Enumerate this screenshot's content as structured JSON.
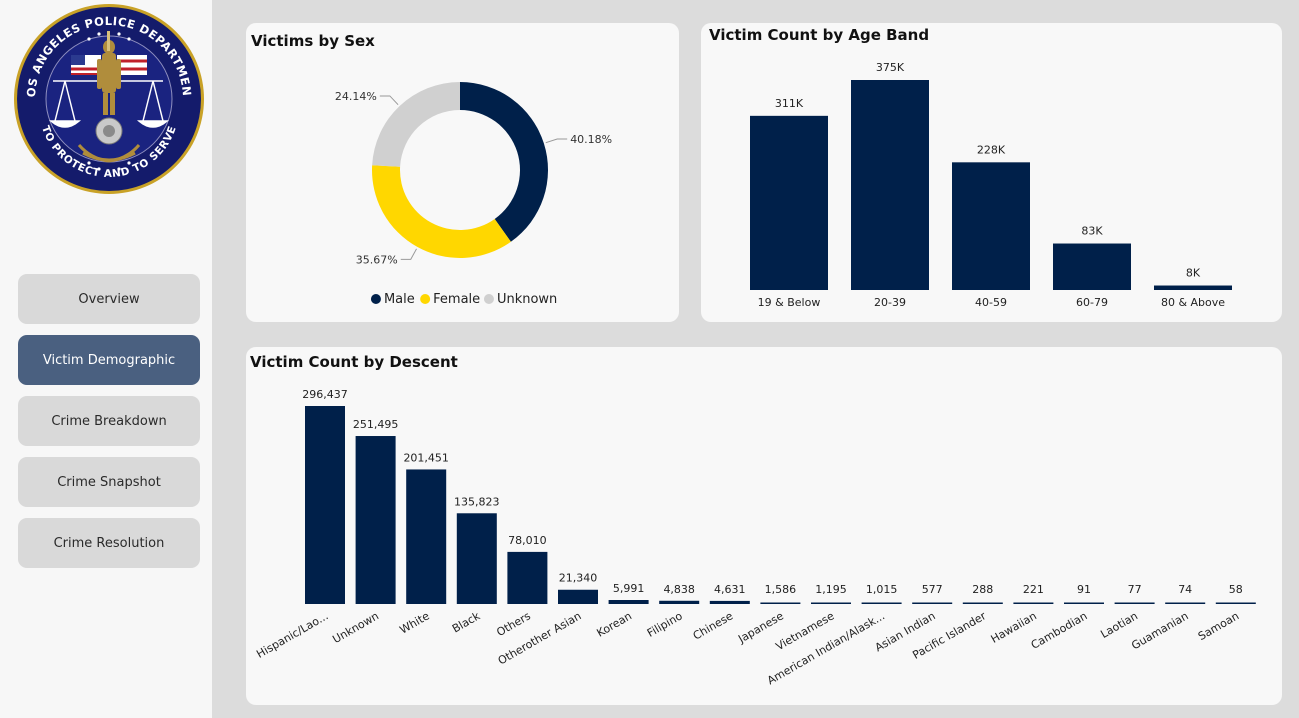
{
  "sidebar": {
    "logo": {
      "top_text": "LOS ANGELES POLICE DEPARTMENT",
      "bottom_text": "TO PROTECT AND TO SERVE"
    },
    "nav": [
      {
        "label": "Overview",
        "active": false
      },
      {
        "label": "Victim Demographic",
        "active": true
      },
      {
        "label": "Crime Breakdown",
        "active": false
      },
      {
        "label": "Crime Snapshot",
        "active": false
      },
      {
        "label": "Crime Resolution",
        "active": false
      }
    ]
  },
  "colors": {
    "navy": "#00204a",
    "yellow": "#ffd700",
    "gray": "#d0d0d0",
    "active_nav": "#4a6080"
  },
  "chart_data": [
    {
      "id": "sex",
      "type": "pie",
      "title": "Victims by Sex",
      "slices": [
        {
          "name": "Male",
          "value": 40.18,
          "label": "40.18%"
        },
        {
          "name": "Female",
          "value": 35.67,
          "label": "35.67%"
        },
        {
          "name": "Unknown",
          "value": 24.14,
          "label": "24.14%"
        }
      ],
      "legend": "bottom"
    },
    {
      "id": "age",
      "type": "bar",
      "title": "Victim Count by Age Band",
      "categories": [
        "19 & Below",
        "20-39",
        "40-59",
        "60-79",
        "80 & Above"
      ],
      "values": [
        311000,
        375000,
        228000,
        83000,
        8000
      ],
      "labels": [
        "311K",
        "375K",
        "228K",
        "83K",
        "8K"
      ],
      "ylim": [
        0,
        375000
      ]
    },
    {
      "id": "descent",
      "type": "bar",
      "title": "Victim Count by Descent",
      "categories": [
        "Hispanic/Lao...",
        "Unknown",
        "White",
        "Black",
        "Others",
        "Otherother Asian",
        "Korean",
        "Filipino",
        "Chinese",
        "Japanese",
        "Vietnamese",
        "American Indian/Alask...",
        "Asian Indian",
        "Pacific Islander",
        "Hawaiian",
        "Cambodian",
        "Laotian",
        "Guamanian",
        "Samoan"
      ],
      "values": [
        296437,
        251495,
        201451,
        135823,
        78010,
        21340,
        5991,
        4838,
        4631,
        1586,
        1195,
        1015,
        577,
        288,
        221,
        91,
        77,
        74,
        58
      ],
      "labels": [
        "296,437",
        "251,495",
        "201,451",
        "135,823",
        "78,010",
        "21,340",
        "5,991",
        "4,838",
        "4,631",
        "1,586",
        "1,195",
        "1,015",
        "577",
        "288",
        "221",
        "91",
        "77",
        "74",
        "58"
      ],
      "ylim": [
        0,
        296437
      ]
    }
  ]
}
